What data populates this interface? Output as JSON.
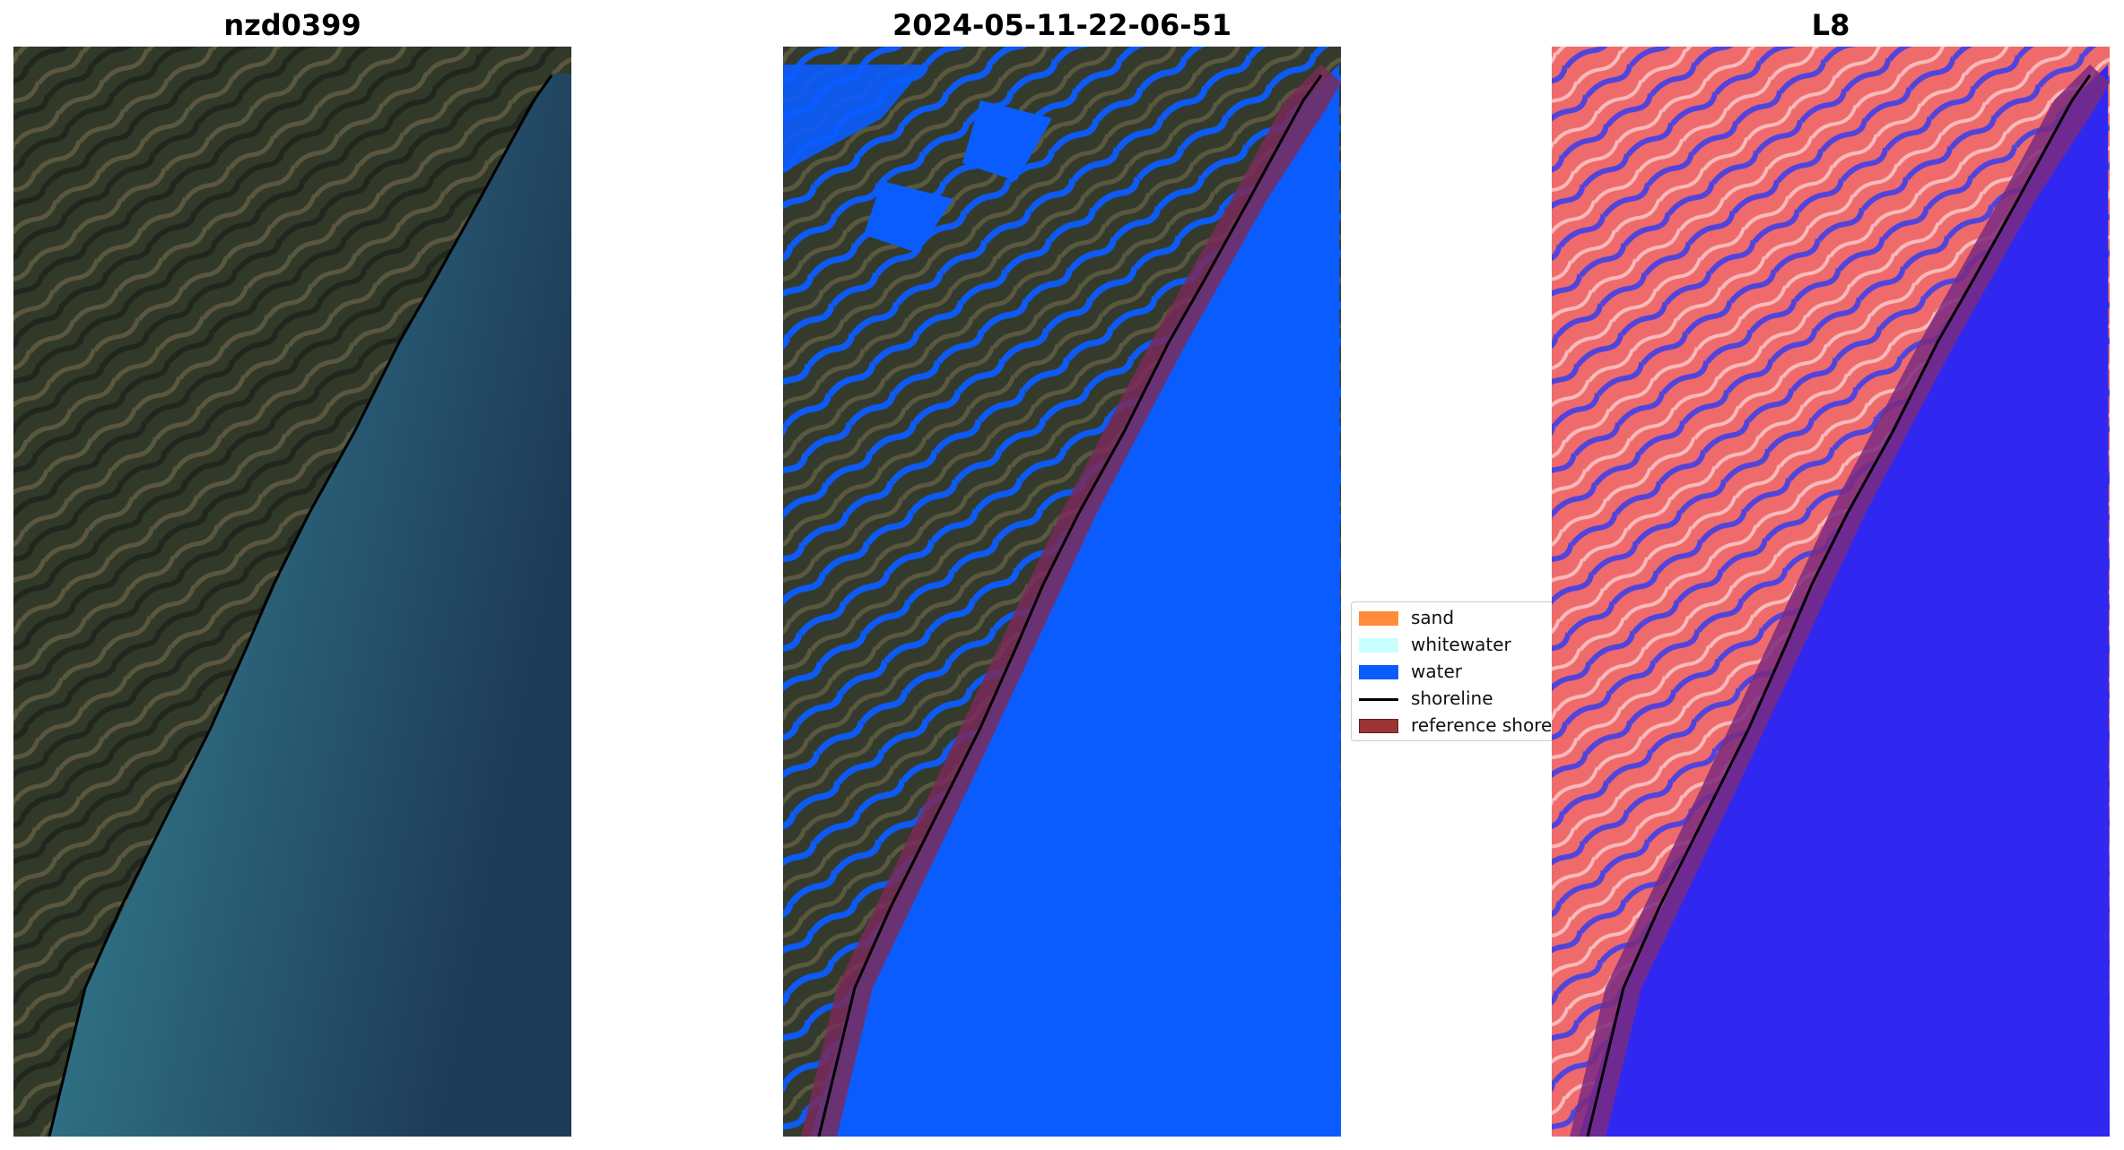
{
  "panels": [
    {
      "title": "nzd0399",
      "kind": "rgb"
    },
    {
      "title": "2024-05-11-22-06-51",
      "kind": "classified"
    },
    {
      "title": "L8",
      "kind": "index"
    }
  ],
  "legend": {
    "items": [
      {
        "label": "sand",
        "type": "patch",
        "color": "#ff8c3a"
      },
      {
        "label": "whitewater",
        "type": "patch",
        "color": "#c8ffff"
      },
      {
        "label": "water",
        "type": "patch",
        "color": "#0a5cff"
      },
      {
        "label": "shoreline",
        "type": "line",
        "color": "#000000"
      },
      {
        "label": "reference shoreline buffer",
        "type": "patch",
        "color": "#9b3535"
      }
    ]
  },
  "colors": {
    "land_dark": "#2b3328",
    "land_mid": "#4a4f3c",
    "sea_coastal": "#3d7f8c",
    "sea_deep": "#1f3d5c",
    "water_class": "#0a5cff",
    "buffer": "#7a2a5a",
    "index_land": "#f07070",
    "index_water": "#3028f0"
  }
}
